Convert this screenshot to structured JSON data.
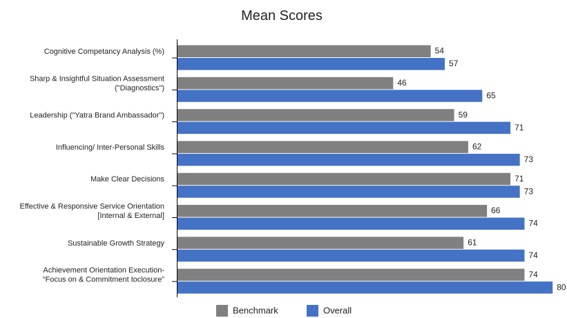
{
  "chart_data": {
    "type": "bar",
    "orientation": "horizontal",
    "title": "Mean Scores",
    "categories": [
      [
        "Cognitive Competancy Analysis (%)"
      ],
      [
        "Sharp & Insightful Situation Assessment",
        "(\"Diagnostics\")"
      ],
      [
        "Leadership (\"Yatra Brand Ambassador\")"
      ],
      [
        "Influencing/ Inter-Personal Skills"
      ],
      [
        "Make Clear Decisions"
      ],
      [
        "Effective & Responsive Service Orientation",
        "[Internal & External]"
      ],
      [
        "Sustainable Growth Strategy"
      ],
      [
        "Achievement Orientation Execution-",
        "“Focus on & Commitment toclosure”"
      ]
    ],
    "series": [
      {
        "name": "Benchmark",
        "color": "#808080",
        "values": [
          54,
          46,
          59,
          62,
          71,
          66,
          61,
          74
        ]
      },
      {
        "name": "Overall",
        "color": "#4472C4",
        "values": [
          57,
          65,
          71,
          73,
          73,
          74,
          74,
          80
        ]
      }
    ],
    "xlim": [
      0,
      100
    ],
    "grid": false,
    "legend_position": "bottom"
  }
}
